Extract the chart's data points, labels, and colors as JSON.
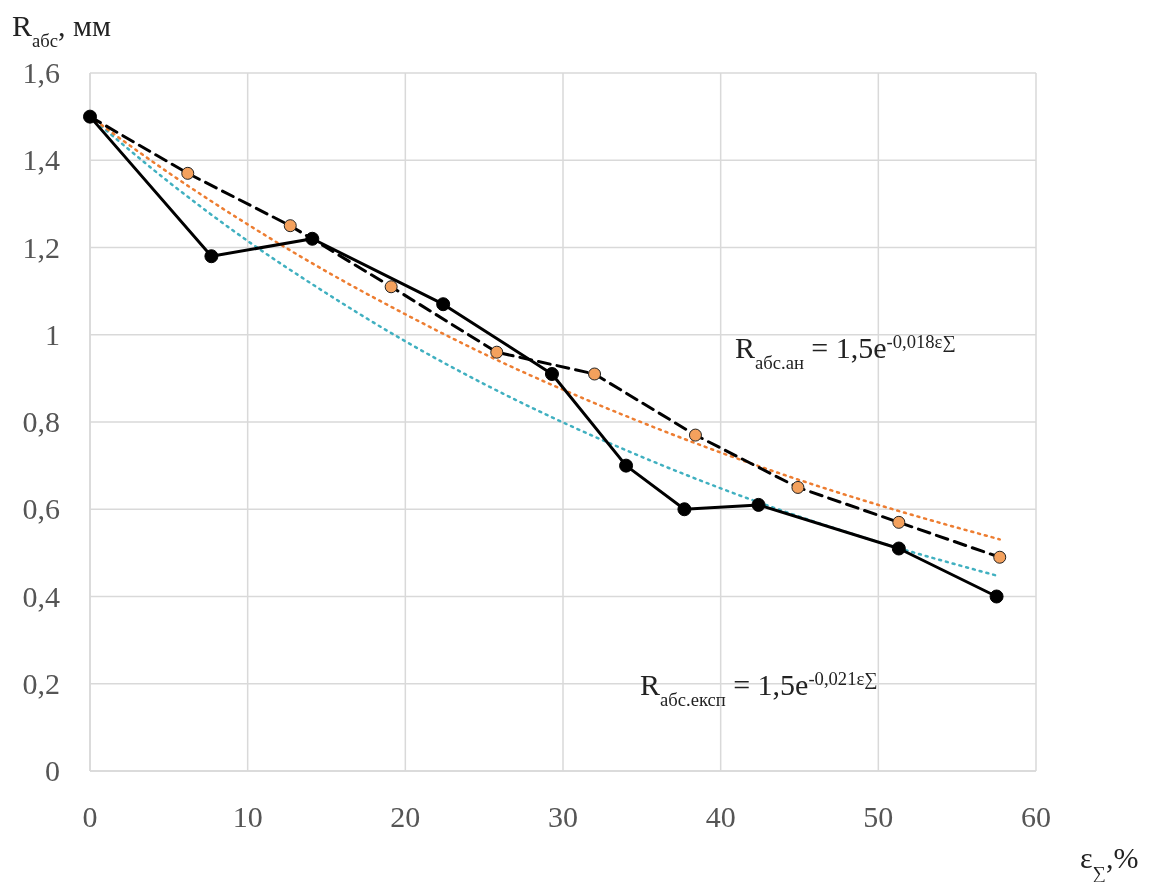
{
  "chart_data": {
    "type": "line",
    "xlabel": "ε$_{∑}$,%",
    "ylabel": "R$_{абс}$, мм",
    "xlim": [
      0,
      60
    ],
    "xticks": [
      0,
      10,
      20,
      30,
      40,
      50,
      60
    ],
    "ylim": [
      0,
      1.6
    ],
    "yticks": [
      0,
      {
        "value": 0.2,
        "label": "0,2"
      },
      {
        "value": 0.4,
        "label": "0,4"
      },
      {
        "value": 0.6,
        "label": "0,6"
      },
      {
        "value": 0.8,
        "label": "0,8"
      },
      1,
      {
        "value": 1.2,
        "label": "1,2"
      },
      {
        "value": 1.4,
        "label": "1,4"
      },
      {
        "value": 1.6,
        "label": "1,6"
      }
    ],
    "grid": true,
    "series": [
      {
        "color": "#40b0c0",
        "line_style": "dotted",
        "marker": "none",
        "x": [
          0,
          5,
          10,
          15,
          20,
          25,
          30,
          35,
          40,
          45,
          50,
          57.5
        ],
        "values": [
          1.5,
          1.35,
          1.215,
          1.095,
          0.985,
          0.887,
          0.799,
          0.72,
          0.648,
          0.583,
          0.525,
          0.448
        ]
      },
      {
        "color": "#ed7d31",
        "line_style": "dotted",
        "marker": "none",
        "x": [
          0,
          5,
          10,
          15,
          20,
          25,
          30,
          35,
          40,
          45,
          50,
          57.7
        ],
        "values": [
          1.5,
          1.371,
          1.253,
          1.145,
          1.047,
          0.956,
          0.874,
          0.799,
          0.73,
          0.667,
          0.61,
          0.531
        ]
      },
      {
        "color": "#000000",
        "line_style": "dashed",
        "marker": "none",
        "x": [
          0,
          6.2,
          12.7,
          19.1,
          25.8,
          32,
          38.4,
          44.9,
          51.3,
          57.7
        ],
        "values": [
          1.5,
          1.37,
          1.25,
          1.11,
          0.96,
          0.91,
          0.77,
          0.65,
          0.57,
          0.49
        ]
      },
      {
        "type": "scatter",
        "color": "#f4a15d",
        "marker": "circle",
        "x": [
          6.2,
          12.7,
          19.1,
          25.8,
          32,
          38.4,
          44.9,
          51.3,
          57.7
        ],
        "values": [
          1.37,
          1.25,
          1.11,
          0.96,
          0.91,
          0.77,
          0.65,
          0.57,
          0.49
        ]
      },
      {
        "color": "#000000",
        "line_style": "solid",
        "marker": "circle",
        "x": [
          0,
          7.7,
          14.1,
          22.4,
          29.3,
          34,
          37.7,
          42.4,
          51.3,
          57.5
        ],
        "values": [
          1.5,
          1.18,
          1.22,
          1.07,
          0.91,
          0.7,
          0.6,
          0.61,
          0.51,
          0.4
        ]
      }
    ],
    "annotations": [
      "R$_{абс.ан}$ = 1,5e$^{-0,018ε∑}$",
      "R$_{абс.експ}$ = 1,5e$^{-0,021ε∑}$"
    ]
  }
}
